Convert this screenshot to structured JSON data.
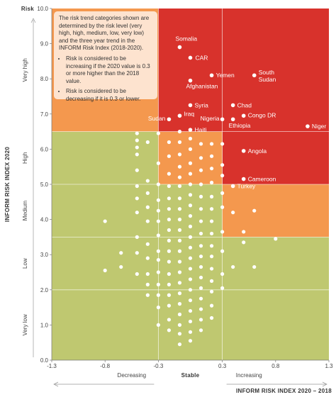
{
  "chart_data": {
    "type": "scatter",
    "ylabel_top": "Risk",
    "ylabel": "INFORM RISK INDEX 2020",
    "xlabel": "INFORM RISK INDEX 2020 – 2018",
    "xlim": [
      -1.3,
      1.3
    ],
    "ylim": [
      0,
      10
    ],
    "x_ticks": [
      "-1.3",
      "-0.8",
      "-0.3",
      "0.3",
      "0.8",
      "1.3"
    ],
    "x_tick_values": [
      -1.3,
      -0.8,
      -0.3,
      0.3,
      0.8,
      1.3
    ],
    "y_ticks": [
      "0.0",
      "1.0",
      "2.0",
      "3.0",
      "4.0",
      "5.0",
      "6.0",
      "7.0",
      "8.0",
      "9.0",
      "10.0"
    ],
    "y_bands": [
      {
        "label": "Very low",
        "from": 0,
        "to": 2
      },
      {
        "label": "Low",
        "from": 2,
        "to": 3.5
      },
      {
        "label": "Medium",
        "from": 3.5,
        "to": 5
      },
      {
        "label": "High",
        "from": 5,
        "to": 6.5
      },
      {
        "label": "Very high",
        "from": 6.5,
        "to": 10
      }
    ],
    "x_bands": [
      {
        "label": "Decreasing",
        "from": -1.3,
        "to": -0.3
      },
      {
        "label": "Stable",
        "from": -0.3,
        "to": 0.3
      },
      {
        "label": "Increasing",
        "from": 0.3,
        "to": 1.3
      }
    ],
    "colors": {
      "green": "#bfc870",
      "orange": "#f4984e",
      "red": "#d8322c",
      "point": "#ffffff",
      "note_bg": "#fde3cf"
    },
    "note": {
      "intro": "The risk trend categories shown are determined by the risk level (very high, high, medium, low, very low) and the three year trend in the INFORM Risk Index (2018-2020).",
      "bullets": [
        "Risk is considered to be increasing if the 2020 value is 0.3 or more higher than the 2018 value.",
        "Risk is considered to be decreasing if it is 0.3 or lower."
      ]
    },
    "labeled_points": [
      {
        "name": "Somalia",
        "x": -0.1,
        "y": 8.9
      },
      {
        "name": "CAR",
        "x": 0.0,
        "y": 8.6
      },
      {
        "name": "Yemen",
        "x": 0.2,
        "y": 8.1
      },
      {
        "name": "South Sudan",
        "x": 0.6,
        "y": 8.1
      },
      {
        "name": "Afghanistan",
        "x": 0.0,
        "y": 7.95
      },
      {
        "name": "Syria",
        "x": 0.0,
        "y": 7.25
      },
      {
        "name": "Chad",
        "x": 0.4,
        "y": 7.25
      },
      {
        "name": "Iraq",
        "x": -0.1,
        "y": 6.95
      },
      {
        "name": "Sudan",
        "x": -0.2,
        "y": 6.85
      },
      {
        "name": "Nigeria",
        "x": 0.3,
        "y": 6.85
      },
      {
        "name": "Congo DR",
        "x": 0.5,
        "y": 6.95
      },
      {
        "name": "Ethiopia",
        "x": 0.4,
        "y": 6.85
      },
      {
        "name": "Niger",
        "x": 1.1,
        "y": 6.65
      },
      {
        "name": "Haiti",
        "x": 0.0,
        "y": 6.55
      },
      {
        "name": "Angola",
        "x": 0.5,
        "y": 5.95
      },
      {
        "name": "Cameroon",
        "x": 0.5,
        "y": 5.15
      },
      {
        "name": "Turkey",
        "x": 0.4,
        "y": 4.95
      }
    ],
    "points": [
      [
        -0.8,
        3.95
      ],
      [
        -0.8,
        2.55
      ],
      [
        -0.65,
        3.05
      ],
      [
        -0.65,
        2.65
      ],
      [
        -0.5,
        6.45
      ],
      [
        -0.5,
        6.25
      ],
      [
        -0.5,
        6.05
      ],
      [
        -0.5,
        5.85
      ],
      [
        -0.5,
        5.4
      ],
      [
        -0.5,
        4.95
      ],
      [
        -0.5,
        4.6
      ],
      [
        -0.5,
        4.2
      ],
      [
        -0.5,
        3.5
      ],
      [
        -0.5,
        3.05
      ],
      [
        -0.5,
        2.45
      ],
      [
        -0.4,
        6.2
      ],
      [
        -0.4,
        5.1
      ],
      [
        -0.4,
        4.75
      ],
      [
        -0.4,
        4.35
      ],
      [
        -0.4,
        3.95
      ],
      [
        -0.4,
        3.3
      ],
      [
        -0.4,
        2.9
      ],
      [
        -0.4,
        2.45
      ],
      [
        -0.4,
        2.15
      ],
      [
        -0.4,
        1.85
      ],
      [
        -0.3,
        6.45
      ],
      [
        -0.3,
        5.6
      ],
      [
        -0.3,
        5.0
      ],
      [
        -0.3,
        4.55
      ],
      [
        -0.3,
        4.25
      ],
      [
        -0.3,
        3.95
      ],
      [
        -0.3,
        3.55
      ],
      [
        -0.3,
        3.1
      ],
      [
        -0.3,
        2.85
      ],
      [
        -0.3,
        2.5
      ],
      [
        -0.3,
        2.15
      ],
      [
        -0.3,
        1.85
      ],
      [
        -0.3,
        1.5
      ],
      [
        -0.3,
        1.0
      ],
      [
        -0.2,
        6.2
      ],
      [
        -0.2,
        5.8
      ],
      [
        -0.2,
        5.3
      ],
      [
        -0.2,
        4.95
      ],
      [
        -0.2,
        4.6
      ],
      [
        -0.2,
        4.3
      ],
      [
        -0.2,
        4.0
      ],
      [
        -0.2,
        3.7
      ],
      [
        -0.2,
        3.4
      ],
      [
        -0.2,
        3.1
      ],
      [
        -0.2,
        2.8
      ],
      [
        -0.2,
        2.45
      ],
      [
        -0.2,
        2.15
      ],
      [
        -0.2,
        1.85
      ],
      [
        -0.2,
        1.55
      ],
      [
        -0.2,
        1.15
      ],
      [
        -0.2,
        0.85
      ],
      [
        -0.1,
        6.5
      ],
      [
        -0.1,
        6.2
      ],
      [
        -0.1,
        5.85
      ],
      [
        -0.1,
        5.5
      ],
      [
        -0.1,
        5.2
      ],
      [
        -0.1,
        4.95
      ],
      [
        -0.1,
        4.6
      ],
      [
        -0.1,
        4.3
      ],
      [
        -0.1,
        4.0
      ],
      [
        -0.1,
        3.7
      ],
      [
        -0.1,
        3.4
      ],
      [
        -0.1,
        3.1
      ],
      [
        -0.1,
        2.8
      ],
      [
        -0.1,
        2.5
      ],
      [
        -0.1,
        2.2
      ],
      [
        -0.1,
        1.9
      ],
      [
        -0.1,
        1.6
      ],
      [
        -0.1,
        1.3
      ],
      [
        -0.1,
        1.0
      ],
      [
        -0.1,
        0.75
      ],
      [
        -0.1,
        0.45
      ],
      [
        0.0,
        6.3
      ],
      [
        0.0,
        6.0
      ],
      [
        0.0,
        5.6
      ],
      [
        0.0,
        5.3
      ],
      [
        0.0,
        5.0
      ],
      [
        0.0,
        4.7
      ],
      [
        0.0,
        4.4
      ],
      [
        0.0,
        4.1
      ],
      [
        0.0,
        3.8
      ],
      [
        0.0,
        3.5
      ],
      [
        0.0,
        3.2
      ],
      [
        0.0,
        2.9
      ],
      [
        0.0,
        2.6
      ],
      [
        0.0,
        2.3
      ],
      [
        0.0,
        2.0
      ],
      [
        0.0,
        1.7
      ],
      [
        0.0,
        1.4
      ],
      [
        0.0,
        1.1
      ],
      [
        0.0,
        0.8
      ],
      [
        0.0,
        0.55
      ],
      [
        0.1,
        6.15
      ],
      [
        0.1,
        5.75
      ],
      [
        0.1,
        5.4
      ],
      [
        0.1,
        5.0
      ],
      [
        0.1,
        4.65
      ],
      [
        0.1,
        4.3
      ],
      [
        0.1,
        3.95
      ],
      [
        0.1,
        3.6
      ],
      [
        0.1,
        3.25
      ],
      [
        0.1,
        2.95
      ],
      [
        0.1,
        2.65
      ],
      [
        0.1,
        2.35
      ],
      [
        0.1,
        2.05
      ],
      [
        0.1,
        1.75
      ],
      [
        0.1,
        1.45
      ],
      [
        0.1,
        1.15
      ],
      [
        0.1,
        0.85
      ],
      [
        0.2,
        6.15
      ],
      [
        0.2,
        5.8
      ],
      [
        0.2,
        5.45
      ],
      [
        0.2,
        5.05
      ],
      [
        0.2,
        4.65
      ],
      [
        0.2,
        4.3
      ],
      [
        0.2,
        3.95
      ],
      [
        0.2,
        3.6
      ],
      [
        0.2,
        3.25
      ],
      [
        0.2,
        2.95
      ],
      [
        0.2,
        2.6
      ],
      [
        0.2,
        2.25
      ],
      [
        0.2,
        1.95
      ],
      [
        0.2,
        1.55
      ],
      [
        0.2,
        1.2
      ],
      [
        0.3,
        6.15
      ],
      [
        0.3,
        5.55
      ],
      [
        0.3,
        5.25
      ],
      [
        0.3,
        4.75
      ],
      [
        0.3,
        4.35
      ],
      [
        0.3,
        3.65
      ],
      [
        0.3,
        3.1
      ],
      [
        0.3,
        2.45
      ],
      [
        0.3,
        2.05
      ],
      [
        0.4,
        4.2
      ],
      [
        0.4,
        2.65
      ],
      [
        0.5,
        3.65
      ],
      [
        0.5,
        3.35
      ],
      [
        0.6,
        4.25
      ],
      [
        0.6,
        2.65
      ],
      [
        0.8,
        3.45
      ]
    ]
  }
}
